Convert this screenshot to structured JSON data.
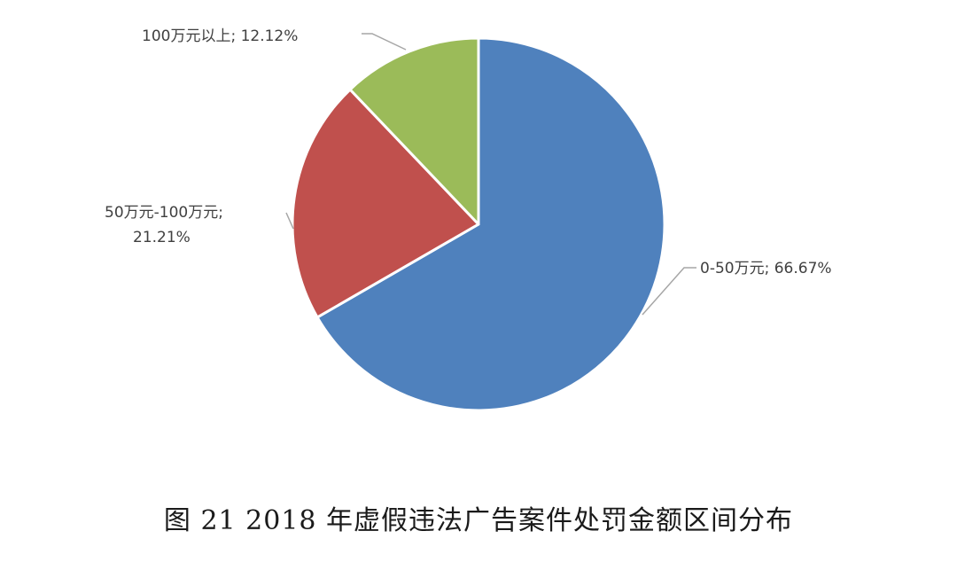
{
  "chart_data": {
    "type": "pie",
    "slices": [
      {
        "label": "0-50万元",
        "value": 66.67,
        "display": "0-50万元; 66.67%",
        "color": "#4f81bd"
      },
      {
        "label": "50万元-100万元",
        "value": 21.21,
        "display_line1": "50万元-100万元;",
        "display_line2": "21.21%",
        "color": "#c0504d"
      },
      {
        "label": "100万元以上",
        "value": 12.12,
        "display": "100万元以上; 12.12%",
        "color": "#9bbb59"
      }
    ],
    "caption": "图 21    2018 年虚假违法广告案件处罚金额区间分布"
  }
}
